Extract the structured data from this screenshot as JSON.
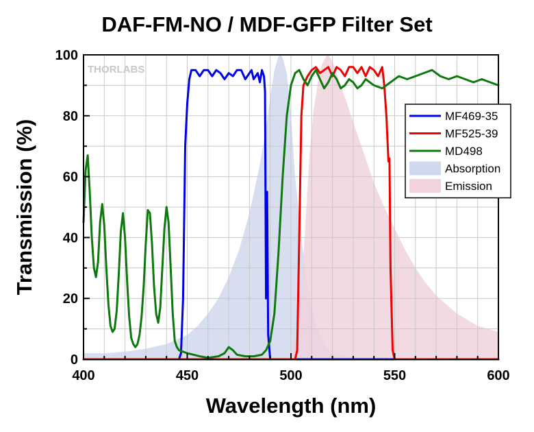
{
  "chart_data": {
    "type": "line",
    "title": "DAF-FM-NO / MDF-GFP Filter Set",
    "xlabel": "Wavelength (nm)",
    "ylabel": "Transmission (%)",
    "xlim": [
      400,
      600
    ],
    "ylim": [
      0,
      100
    ],
    "xticks": [
      400,
      450,
      500,
      550,
      600
    ],
    "yticks": [
      0,
      20,
      40,
      60,
      80,
      100
    ],
    "grid": true,
    "legend_position": "right",
    "brand_text": "THORLABS",
    "series": [
      {
        "name": "MF469-35",
        "kind": "line",
        "color": "#0000e6",
        "points": [
          [
            400,
            0
          ],
          [
            446,
            0
          ],
          [
            447,
            2
          ],
          [
            448,
            20
          ],
          [
            449,
            70
          ],
          [
            450,
            84
          ],
          [
            451,
            92
          ],
          [
            452,
            95
          ],
          [
            454,
            95
          ],
          [
            456,
            93
          ],
          [
            458,
            95
          ],
          [
            460,
            95
          ],
          [
            462,
            93
          ],
          [
            464,
            95
          ],
          [
            466,
            94
          ],
          [
            468,
            92
          ],
          [
            470,
            94
          ],
          [
            472,
            93
          ],
          [
            474,
            95
          ],
          [
            476,
            95
          ],
          [
            478,
            92
          ],
          [
            480,
            94
          ],
          [
            481,
            95
          ],
          [
            482,
            92
          ],
          [
            484,
            94
          ],
          [
            485,
            91
          ],
          [
            486,
            95
          ],
          [
            487,
            93
          ],
          [
            487.5,
            88
          ],
          [
            488,
            20
          ],
          [
            488.5,
            55
          ],
          [
            489,
            8
          ],
          [
            490,
            0
          ],
          [
            600,
            0
          ]
        ]
      },
      {
        "name": "MF525-39",
        "kind": "line",
        "color": "#ee0000",
        "points": [
          [
            400,
            0
          ],
          [
            502,
            0
          ],
          [
            503,
            3
          ],
          [
            504,
            40
          ],
          [
            505,
            80
          ],
          [
            506,
            90
          ],
          [
            508,
            93
          ],
          [
            510,
            95
          ],
          [
            512,
            96
          ],
          [
            514,
            94
          ],
          [
            516,
            95
          ],
          [
            518,
            96
          ],
          [
            520,
            93
          ],
          [
            522,
            96
          ],
          [
            524,
            95
          ],
          [
            526,
            93
          ],
          [
            528,
            96
          ],
          [
            530,
            96
          ],
          [
            532,
            94
          ],
          [
            534,
            96
          ],
          [
            536,
            93
          ],
          [
            538,
            96
          ],
          [
            540,
            95
          ],
          [
            542,
            93
          ],
          [
            544,
            96
          ],
          [
            545,
            90
          ],
          [
            546,
            80
          ],
          [
            547,
            65
          ],
          [
            547.5,
            66
          ],
          [
            548,
            30
          ],
          [
            549,
            3
          ],
          [
            550,
            0
          ],
          [
            600,
            0
          ]
        ]
      },
      {
        "name": "MD498",
        "kind": "line",
        "color": "#0e780e",
        "points": [
          [
            400,
            45
          ],
          [
            401,
            62
          ],
          [
            402,
            67
          ],
          [
            403,
            55
          ],
          [
            404,
            40
          ],
          [
            405,
            30
          ],
          [
            406,
            27
          ],
          [
            407,
            32
          ],
          [
            408,
            45
          ],
          [
            409,
            51
          ],
          [
            410,
            44
          ],
          [
            411,
            30
          ],
          [
            412,
            18
          ],
          [
            413,
            11
          ],
          [
            414,
            9
          ],
          [
            415,
            10
          ],
          [
            416,
            16
          ],
          [
            417,
            28
          ],
          [
            418,
            42
          ],
          [
            419,
            48
          ],
          [
            420,
            40
          ],
          [
            421,
            26
          ],
          [
            422,
            14
          ],
          [
            423,
            7
          ],
          [
            424,
            5
          ],
          [
            425,
            4
          ],
          [
            426,
            5
          ],
          [
            427,
            8
          ],
          [
            428,
            14
          ],
          [
            429,
            24
          ],
          [
            430,
            38
          ],
          [
            431,
            49
          ],
          [
            432,
            48
          ],
          [
            433,
            38
          ],
          [
            434,
            24
          ],
          [
            435,
            15
          ],
          [
            436,
            12
          ],
          [
            437,
            17
          ],
          [
            438,
            30
          ],
          [
            439,
            43
          ],
          [
            440,
            50
          ],
          [
            441,
            45
          ],
          [
            442,
            30
          ],
          [
            443,
            15
          ],
          [
            444,
            6
          ],
          [
            445,
            4
          ],
          [
            446,
            3
          ],
          [
            448,
            2.5
          ],
          [
            450,
            2
          ],
          [
            453,
            1.5
          ],
          [
            456,
            1
          ],
          [
            460,
            0.5
          ],
          [
            465,
            1
          ],
          [
            468,
            2
          ],
          [
            470,
            4
          ],
          [
            472,
            3
          ],
          [
            474,
            1.5
          ],
          [
            478,
            1
          ],
          [
            482,
            1
          ],
          [
            486,
            1.5
          ],
          [
            488,
            3
          ],
          [
            490,
            6
          ],
          [
            492,
            15
          ],
          [
            494,
            35
          ],
          [
            496,
            60
          ],
          [
            498,
            80
          ],
          [
            500,
            90
          ],
          [
            502,
            94
          ],
          [
            504,
            95
          ],
          [
            506,
            92
          ],
          [
            508,
            90
          ],
          [
            510,
            93
          ],
          [
            512,
            95
          ],
          [
            514,
            92
          ],
          [
            516,
            89
          ],
          [
            518,
            91
          ],
          [
            520,
            94
          ],
          [
            522,
            92
          ],
          [
            524,
            89
          ],
          [
            526,
            90
          ],
          [
            528,
            92
          ],
          [
            530,
            91
          ],
          [
            532,
            89
          ],
          [
            534,
            90
          ],
          [
            536,
            92
          ],
          [
            540,
            90
          ],
          [
            544,
            89
          ],
          [
            548,
            91
          ],
          [
            552,
            93
          ],
          [
            556,
            92
          ],
          [
            560,
            93
          ],
          [
            564,
            94
          ],
          [
            568,
            95
          ],
          [
            572,
            93
          ],
          [
            576,
            92
          ],
          [
            580,
            93
          ],
          [
            584,
            92
          ],
          [
            588,
            91
          ],
          [
            592,
            92
          ],
          [
            596,
            91
          ],
          [
            600,
            90
          ]
        ]
      },
      {
        "name": "Absorption",
        "kind": "area",
        "color": "#d0d8ed",
        "points": [
          [
            400,
            2
          ],
          [
            410,
            2
          ],
          [
            420,
            2.5
          ],
          [
            430,
            3.5
          ],
          [
            440,
            5
          ],
          [
            450,
            8
          ],
          [
            455,
            11
          ],
          [
            460,
            15
          ],
          [
            465,
            20
          ],
          [
            470,
            27
          ],
          [
            475,
            36
          ],
          [
            480,
            48
          ],
          [
            485,
            64
          ],
          [
            488,
            76
          ],
          [
            490,
            86
          ],
          [
            492,
            95
          ],
          [
            494,
            99.5
          ],
          [
            495,
            100
          ],
          [
            496,
            99
          ],
          [
            498,
            94
          ],
          [
            500,
            80
          ],
          [
            502,
            60
          ],
          [
            505,
            40
          ],
          [
            508,
            24
          ],
          [
            512,
            11
          ],
          [
            516,
            5
          ],
          [
            520,
            2
          ],
          [
            530,
            0.5
          ],
          [
            540,
            0
          ],
          [
            600,
            0
          ]
        ]
      },
      {
        "name": "Emission",
        "kind": "area",
        "color": "#f0d3de",
        "points": [
          [
            400,
            0
          ],
          [
            495,
            0
          ],
          [
            500,
            1
          ],
          [
            503,
            10
          ],
          [
            505,
            22
          ],
          [
            507,
            45
          ],
          [
            509,
            68
          ],
          [
            511,
            82
          ],
          [
            513,
            91
          ],
          [
            515,
            97
          ],
          [
            517,
            99.5
          ],
          [
            518,
            100
          ],
          [
            520,
            98
          ],
          [
            522,
            94
          ],
          [
            524,
            90
          ],
          [
            526,
            86
          ],
          [
            530,
            78
          ],
          [
            535,
            68
          ],
          [
            540,
            58
          ],
          [
            545,
            50
          ],
          [
            550,
            43
          ],
          [
            555,
            36
          ],
          [
            560,
            30
          ],
          [
            565,
            25
          ],
          [
            570,
            21
          ],
          [
            575,
            18
          ],
          [
            580,
            15
          ],
          [
            585,
            13
          ],
          [
            590,
            11
          ],
          [
            595,
            10
          ],
          [
            600,
            9
          ]
        ]
      }
    ]
  }
}
